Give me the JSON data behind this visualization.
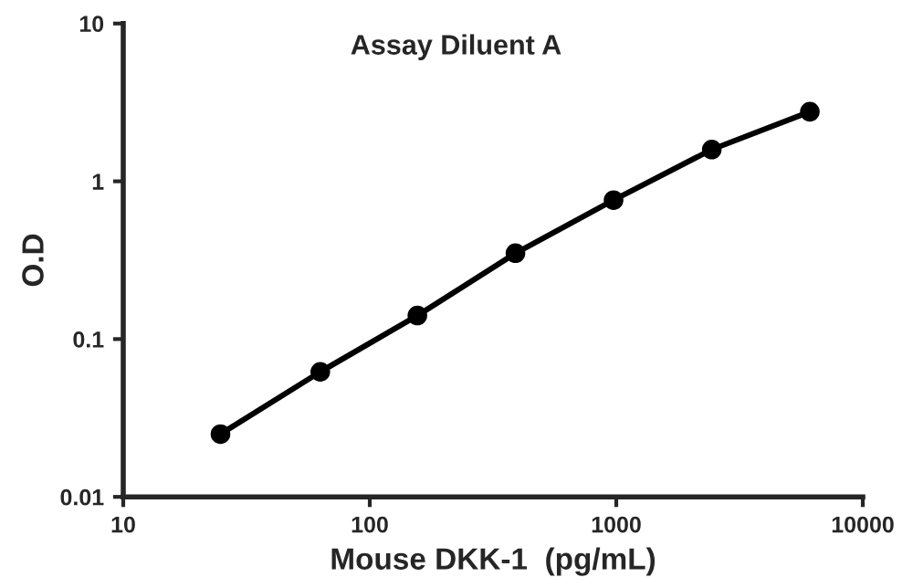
{
  "chart_data": {
    "type": "line",
    "title": "Assay Diluent A",
    "xlabel": "Mouse DKK-1  (pg/mL)",
    "ylabel": "O.D",
    "log": "xy",
    "x": [
      24.8,
      63,
      156,
      390,
      975,
      2440,
      6100
    ],
    "series": [
      {
        "color": "#000000",
        "values": [
          0.025,
          0.062,
          0.141,
          0.35,
          0.76,
          1.59,
          2.76
        ]
      }
    ],
    "xlim": [
      10,
      10000
    ],
    "xticks": [
      10,
      100,
      1000,
      10000
    ],
    "ylim": [
      0.01,
      10
    ],
    "yticks": [
      0.01,
      0.1,
      1,
      10
    ],
    "grid": false,
    "legend": false,
    "marker": "circle",
    "line_style": "solid"
  }
}
